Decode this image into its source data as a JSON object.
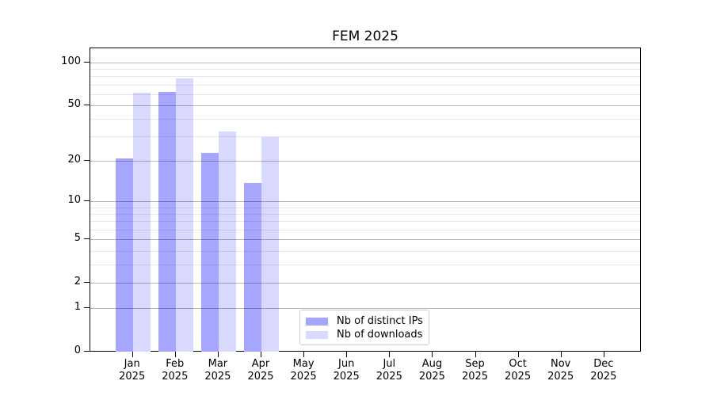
{
  "chart_data": {
    "type": "bar",
    "title": "FEM 2025",
    "categories": [
      "Jan",
      "Feb",
      "Mar",
      "Apr",
      "May",
      "Jun",
      "Jul",
      "Aug",
      "Sep",
      "Oct",
      "Nov",
      "Dec"
    ],
    "tick_year": "2025",
    "series": [
      {
        "name": "Nb of distinct IPs",
        "color": "#a6a6ff",
        "values": [
          21,
          63,
          23,
          14,
          null,
          null,
          null,
          null,
          null,
          null,
          null,
          null
        ]
      },
      {
        "name": "Nb of downloads",
        "color": "#d9d9ff",
        "values": [
          62,
          78,
          33,
          30,
          null,
          null,
          null,
          null,
          null,
          null,
          null,
          null
        ]
      }
    ],
    "yscale": "log1p",
    "ylim": [
      0,
      127
    ],
    "y_major_ticks": [
      0,
      1,
      2,
      5,
      10,
      20,
      50,
      100
    ],
    "y_minor_ticks": [
      3,
      4,
      6,
      7,
      8,
      9,
      30,
      40,
      60,
      70,
      80,
      90
    ],
    "grid": true,
    "legend": {
      "position": "lower-center-inside",
      "entries": [
        "Nb of distinct IPs",
        "Nb of downloads"
      ]
    },
    "colors": {
      "grid_major": "#b8b8b8",
      "grid_minor": "#e8e8e8",
      "axis": "#000000",
      "background": "#ffffff"
    }
  }
}
